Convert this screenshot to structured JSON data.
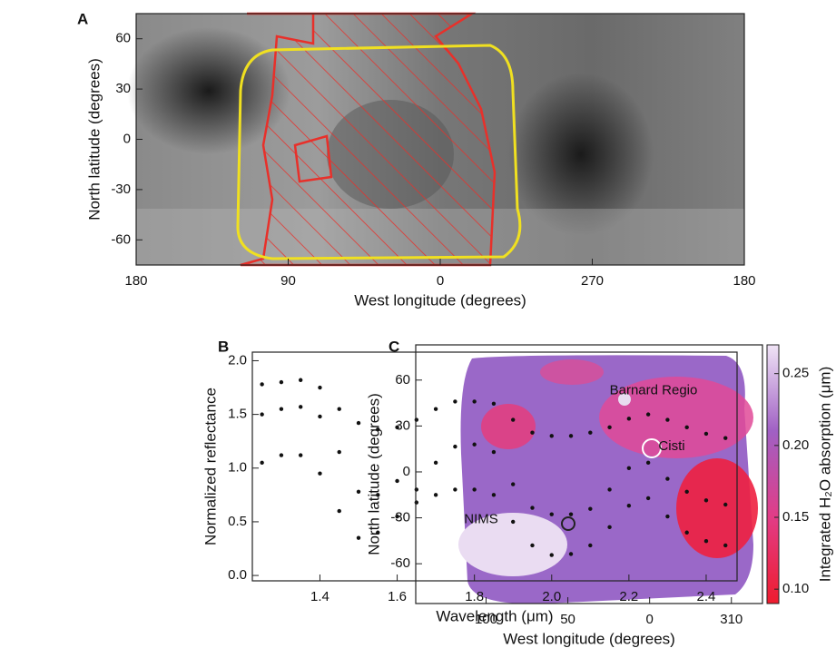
{
  "chart_data": [
    {
      "type": "image",
      "panel": "A",
      "x_label": "West longitude (degrees)",
      "y_label": "North latitude (degrees)",
      "xlim": [
        180,
        -180
      ],
      "ylim": [
        -75,
        75
      ],
      "xticks": [
        180,
        90,
        0,
        {
          "value": -90,
          "label": "270"
        },
        {
          "value": -180,
          "label": "180"
        }
      ],
      "yticks": [
        -60,
        -30,
        0,
        30,
        60
      ]
    },
    {
      "type": "scatter",
      "panel": "B",
      "x_label": "Wavelength (μm)",
      "y_label": "Normalized reflectance",
      "xlim": [
        1.225,
        2.48
      ],
      "ylim": [
        -0.05,
        2.08
      ],
      "xticks": [
        1.4,
        1.6,
        1.8,
        {
          "value": 2,
          "label": "2.0"
        },
        2.2,
        2.4
      ],
      "yticks": [
        {
          "value": 0,
          "label": "0.0"
        },
        0.5,
        {
          "value": 1,
          "label": "1.0"
        },
        1.5,
        {
          "value": 2,
          "label": "2.0"
        }
      ],
      "x": [
        1.25,
        1.3,
        1.35,
        1.4,
        1.45,
        1.5,
        1.55,
        1.6,
        1.65,
        1.7,
        1.75,
        1.8,
        1.85,
        1.9,
        1.95,
        2.0,
        2.05,
        2.1,
        2.15,
        2.2,
        2.25,
        2.3,
        2.35,
        2.4,
        2.45
      ],
      "series": [
        {
          "name": "Barnard Regio",
          "color": "#111111",
          "values": [
            1.78,
            1.8,
            1.82,
            1.75,
            1.55,
            1.42,
            1.36,
            1.38,
            1.45,
            1.55,
            1.62,
            1.62,
            1.6,
            1.45,
            1.33,
            1.3,
            1.3,
            1.33,
            1.38,
            1.46,
            1.5,
            1.45,
            1.38,
            1.32,
            1.28
          ]
        },
        {
          "name": "Cisti",
          "color": "#111111",
          "values": [
            1.5,
            1.55,
            1.57,
            1.48,
            1.15,
            0.78,
            0.75,
            0.88,
            0.8,
            1.05,
            1.2,
            1.22,
            1.15,
            0.85,
            0.63,
            0.57,
            0.57,
            0.62,
            0.8,
            1.0,
            1.05,
            0.9,
            0.78,
            0.7,
            0.66
          ]
        },
        {
          "name": "NIMS",
          "color": "#111111",
          "values": [
            1.05,
            1.12,
            1.12,
            0.95,
            0.6,
            0.35,
            0.4,
            0.55,
            0.68,
            0.75,
            0.8,
            0.8,
            0.75,
            0.5,
            0.28,
            0.19,
            0.2,
            0.28,
            0.45,
            0.65,
            0.72,
            0.55,
            0.4,
            0.32,
            0.28
          ]
        }
      ]
    },
    {
      "type": "heatmap",
      "panel": "C",
      "x_label": "West longitude (degrees)",
      "y_label": "North latitude (degrees)",
      "xlim": [
        143,
        -69
      ],
      "ylim": [
        -86,
        83
      ],
      "xticks": [
        100,
        50,
        0,
        {
          "value": -50,
          "label": "310"
        }
      ],
      "yticks": [
        -60,
        -30,
        0,
        30,
        60
      ],
      "colorbar_label": "Integrated H₂O absorption (μm)",
      "clim": [
        0.09,
        0.27
      ],
      "cticks": [
        {
          "value": 0.1,
          "label": "0.10"
        },
        0.15,
        {
          "value": 0.2,
          "label": "0.20"
        },
        0.25
      ],
      "colors": [
        "#ee1c2e",
        "#e23c86",
        "#a060c4",
        "#f0e4f6"
      ]
    }
  ]
}
